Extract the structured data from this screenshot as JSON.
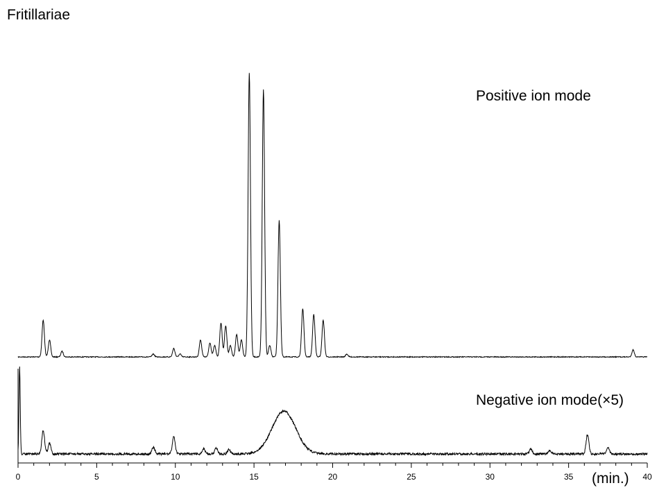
{
  "chart_data": {
    "type": "line",
    "title": "Fritillariae",
    "xlabel": "(min.)",
    "ylabel": "",
    "xlim": [
      0,
      40
    ],
    "x_ticks": [
      0,
      5,
      10,
      15,
      20,
      25,
      30,
      35,
      40
    ],
    "grid": false,
    "series": [
      {
        "name": "Positive ion mode",
        "baseline": 0,
        "peaks": [
          {
            "x": 1.6,
            "h": 0.13
          },
          {
            "x": 2.0,
            "h": 0.06
          },
          {
            "x": 2.8,
            "h": 0.02
          },
          {
            "x": 8.6,
            "h": 0.01
          },
          {
            "x": 9.9,
            "h": 0.03
          },
          {
            "x": 10.3,
            "h": 0.01
          },
          {
            "x": 11.6,
            "h": 0.06
          },
          {
            "x": 12.2,
            "h": 0.05
          },
          {
            "x": 12.5,
            "h": 0.04
          },
          {
            "x": 12.9,
            "h": 0.12
          },
          {
            "x": 13.2,
            "h": 0.11
          },
          {
            "x": 13.5,
            "h": 0.04
          },
          {
            "x": 13.9,
            "h": 0.08
          },
          {
            "x": 14.2,
            "h": 0.06
          },
          {
            "x": 14.7,
            "h": 1.0
          },
          {
            "x": 15.6,
            "h": 0.94
          },
          {
            "x": 16.0,
            "h": 0.04
          },
          {
            "x": 16.6,
            "h": 0.48
          },
          {
            "x": 18.1,
            "h": 0.17
          },
          {
            "x": 18.8,
            "h": 0.15
          },
          {
            "x": 19.4,
            "h": 0.13
          },
          {
            "x": 20.9,
            "h": 0.01
          },
          {
            "x": 39.1,
            "h": 0.025
          }
        ]
      },
      {
        "name": "Negative ion mode(×5)",
        "baseline": 0,
        "peaks": [
          {
            "x": 0.1,
            "h": 1.0
          },
          {
            "x": 1.6,
            "h": 0.27
          },
          {
            "x": 2.0,
            "h": 0.12
          },
          {
            "x": 8.6,
            "h": 0.08
          },
          {
            "x": 9.9,
            "h": 0.2
          },
          {
            "x": 11.8,
            "h": 0.06
          },
          {
            "x": 12.6,
            "h": 0.07
          },
          {
            "x": 13.4,
            "h": 0.05
          },
          {
            "x": 16.9,
            "h": 0.49
          },
          {
            "x": 32.6,
            "h": 0.06
          },
          {
            "x": 33.8,
            "h": 0.04
          },
          {
            "x": 36.2,
            "h": 0.22
          },
          {
            "x": 37.5,
            "h": 0.07
          }
        ]
      }
    ]
  }
}
